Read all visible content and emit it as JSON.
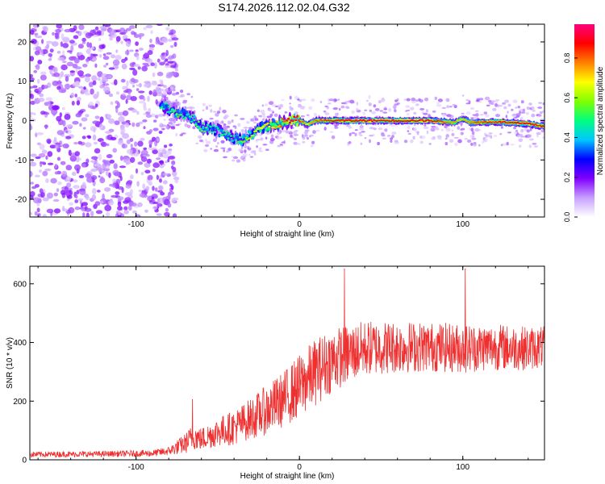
{
  "figure_title": "S174.2026.112.02.04.G32",
  "chart_data": [
    {
      "type": "heatmap",
      "title": "S174.2026.112.02.04.G32",
      "xlabel": "Height of straight line (km)",
      "ylabel": "Frequency (Hz)",
      "xlim": [
        -165,
        150
      ],
      "ylim": [
        -24.5,
        24.5
      ],
      "xticks": [
        -100,
        0,
        100
      ],
      "yticks": [
        -20,
        -10,
        0,
        10,
        20
      ],
      "colorbar": {
        "label": "Normalized spectral amplitude",
        "range": [
          0.0,
          0.97
        ],
        "ticks": [
          0.0,
          0.2,
          0.4,
          0.6,
          0.8
        ],
        "tick_labels": [
          "0.0",
          "0.2",
          "0.4",
          "0.6",
          "0.8"
        ],
        "colormap": [
          "#ffffff",
          "#c8a0ff",
          "#8000ff",
          "#0000ff",
          "#00c8ff",
          "#00ff80",
          "#80ff00",
          "#ffff00",
          "#ff8000",
          "#ff0000",
          "#ff0080"
        ]
      },
      "ridge": {
        "x": [
          -85,
          -80,
          -75,
          -70,
          -65,
          -60,
          -55,
          -50,
          -45,
          -40,
          -35,
          -30,
          -25,
          -20,
          -15,
          -10,
          -5,
          0,
          5,
          10,
          20,
          40,
          60,
          80,
          95,
          100,
          105,
          120,
          140,
          150
        ],
        "freq": [
          4,
          3,
          2,
          1.5,
          0.5,
          -1.5,
          -2,
          -2.5,
          -3.5,
          -4.5,
          -5,
          -3.5,
          -2,
          -1.5,
          -1,
          -0.5,
          0,
          0,
          -1,
          0,
          0,
          0,
          0,
          0,
          -0.5,
          0.5,
          -0.5,
          -0.3,
          -0.8,
          -1.5
        ],
        "amplitude": [
          0.45,
          0.5,
          0.55,
          0.45,
          0.5,
          0.55,
          0.5,
          0.45,
          0.5,
          0.45,
          0.55,
          0.6,
          0.65,
          0.7,
          0.72,
          0.8,
          0.9,
          0.85,
          0.7,
          0.8,
          0.85,
          0.9,
          0.88,
          0.9,
          0.75,
          0.7,
          0.8,
          0.85,
          0.9,
          0.85
        ]
      },
      "noise_region": {
        "x_range": [
          -165,
          -80
        ],
        "freq_range": [
          -24.5,
          24.5
        ],
        "amplitude_range": [
          0.05,
          0.2
        ]
      }
    },
    {
      "type": "line",
      "xlabel": "Height of straight line (km)",
      "ylabel": "SNR (10 * v/v)",
      "xlim": [
        -165,
        150
      ],
      "ylim": [
        0,
        660
      ],
      "xticks": [
        -100,
        0,
        100
      ],
      "yticks": [
        0,
        200,
        400,
        600
      ],
      "color": "#ee3030",
      "envelope": {
        "x": [
          -165,
          -120,
          -90,
          -80,
          -70,
          -65,
          -60,
          -50,
          -40,
          -30,
          -20,
          -10,
          0,
          10,
          20,
          30,
          40,
          60,
          80,
          100,
          120,
          140,
          150
        ],
        "mean": [
          18,
          20,
          22,
          30,
          55,
          80,
          70,
          95,
          110,
          140,
          170,
          205,
          250,
          300,
          340,
          360,
          380,
          385,
          385,
          380,
          385,
          380,
          385
        ],
        "spread": [
          10,
          10,
          12,
          15,
          35,
          45,
          40,
          50,
          60,
          70,
          85,
          95,
          110,
          115,
          110,
          100,
          95,
          90,
          85,
          85,
          80,
          75,
          70
        ]
      },
      "peaks": [
        {
          "x": -65.5,
          "y": 205
        },
        {
          "x": 27.5,
          "y": 650
        },
        {
          "x": 101.5,
          "y": 650
        }
      ]
    }
  ]
}
